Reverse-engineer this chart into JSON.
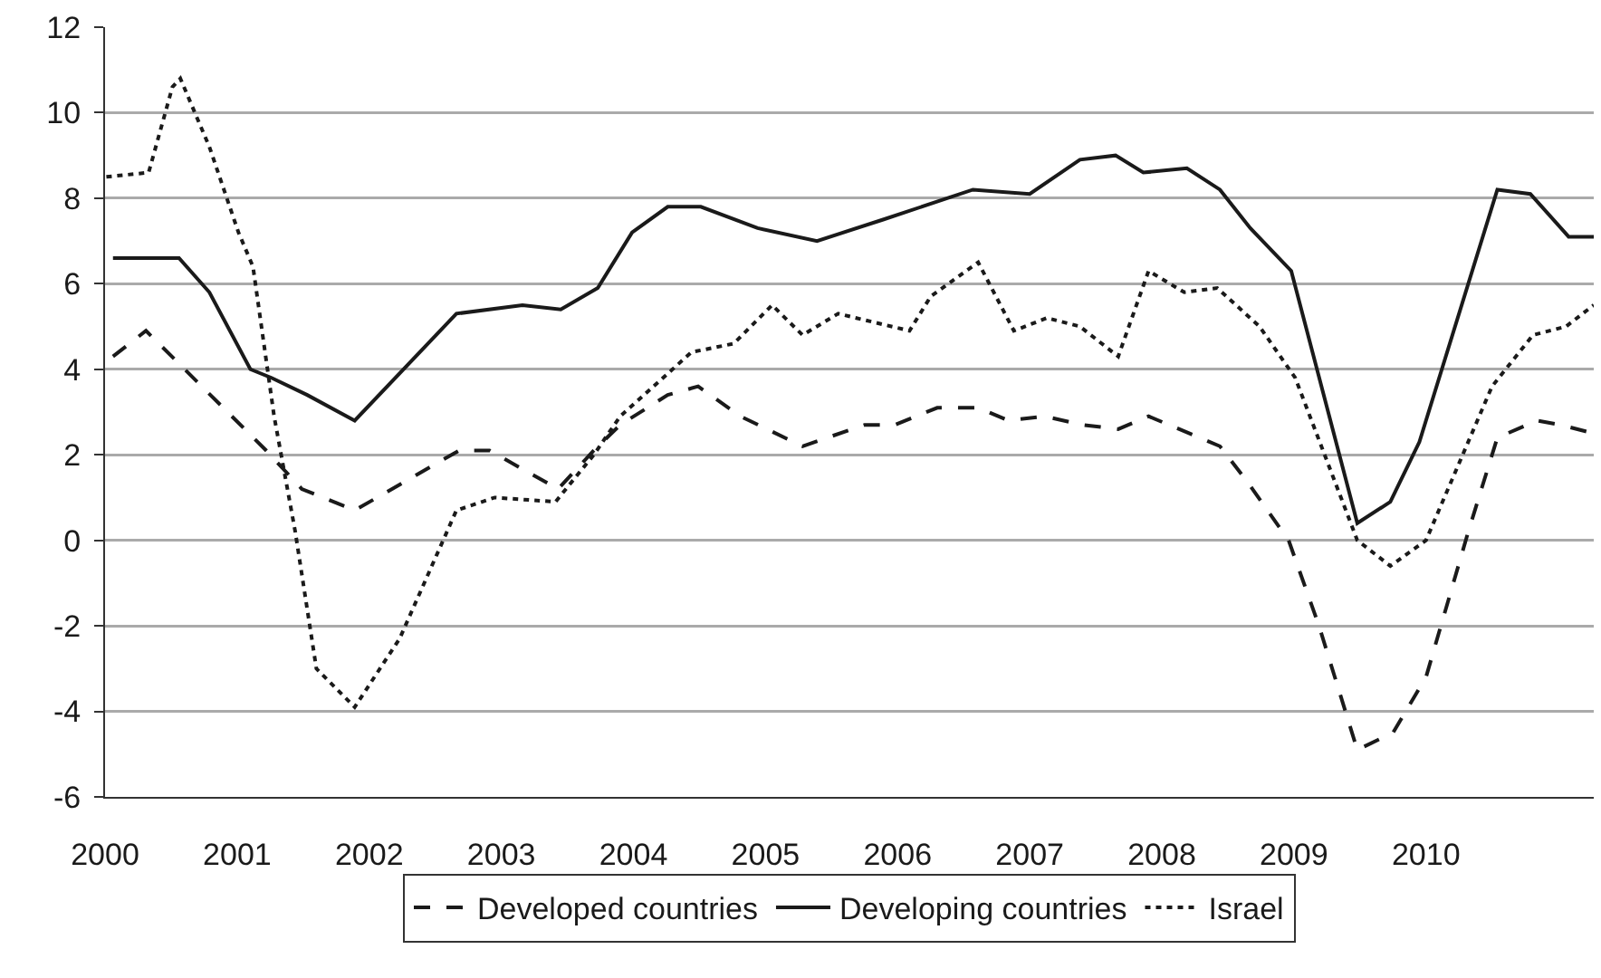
{
  "chart_data": {
    "type": "line",
    "xlim": [
      2000,
      2011.27
    ],
    "xticks": [
      2000,
      2001,
      2002,
      2003,
      2004,
      2005,
      2006,
      2007,
      2008,
      2009,
      2010
    ],
    "ylim": [
      -6,
      12
    ],
    "yticks": [
      -6,
      -4,
      -2,
      0,
      2,
      4,
      6,
      8,
      10,
      12
    ],
    "grid": "y",
    "legend": "bottom",
    "marker": "none",
    "series": [
      {
        "name": "Developed countries",
        "color": "#1a1a1a",
        "line_style": "dashed",
        "x": [
          2000.06,
          2000.31,
          2001.22,
          2001.49,
          2001.89,
          2002.68,
          2002.91,
          2003.43,
          2003.7,
          2003.9,
          2004.26,
          2004.49,
          2004.81,
          2005.28,
          2005.75,
          2005.98,
          2006.3,
          2006.61,
          2006.84,
          2007.11,
          2007.4,
          2007.67,
          2007.9,
          2008.44,
          2008.64,
          2008.96,
          2009.19,
          2009.48,
          2009.75,
          2010.0,
          2010.32,
          2010.54,
          2010.84,
          2011.02,
          2011.27
        ],
        "values": [
          4.3,
          4.9,
          2.1,
          1.2,
          0.7,
          2.1,
          2.1,
          1.2,
          2.1,
          2.7,
          3.4,
          3.6,
          2.9,
          2.2,
          2.7,
          2.7,
          3.1,
          3.1,
          2.8,
          2.9,
          2.7,
          2.6,
          2.9,
          2.2,
          1.4,
          0.0,
          -2.0,
          -4.9,
          -4.5,
          -3.2,
          0.2,
          2.4,
          2.8,
          2.7,
          2.5
        ]
      },
      {
        "name": "Developing countries",
        "color": "#1a1a1a",
        "line_style": "solid",
        "x": [
          2000.06,
          2000.56,
          2000.79,
          2001.1,
          2001.26,
          2001.53,
          2001.89,
          2002.66,
          2003.16,
          2003.45,
          2003.73,
          2003.99,
          2004.26,
          2004.51,
          2004.94,
          2005.39,
          2005.89,
          2006.57,
          2007.0,
          2007.38,
          2007.65,
          2007.86,
          2008.19,
          2008.44,
          2008.67,
          2008.98,
          2009.48,
          2009.73,
          2009.95,
          2010.54,
          2010.79,
          2011.08,
          2011.27
        ],
        "values": [
          6.6,
          6.6,
          5.8,
          4.0,
          3.8,
          3.4,
          2.8,
          5.3,
          5.5,
          5.4,
          5.9,
          7.2,
          7.8,
          7.8,
          7.3,
          7.0,
          7.5,
          8.2,
          8.1,
          8.9,
          9.0,
          8.6,
          8.7,
          8.2,
          7.3,
          6.3,
          0.4,
          0.9,
          2.3,
          8.2,
          8.1,
          7.1,
          7.1
        ]
      },
      {
        "name": "Israel",
        "color": "#1a1a1a",
        "line_style": "dotted",
        "x": [
          2000.01,
          2000.33,
          2000.51,
          2000.57,
          2000.79,
          2001.01,
          2001.12,
          2001.28,
          2001.44,
          2001.6,
          2001.89,
          2002.23,
          2002.66,
          2002.95,
          2003.41,
          2003.7,
          2003.9,
          2004.08,
          2004.44,
          2004.76,
          2005.05,
          2005.28,
          2005.55,
          2006.09,
          2006.25,
          2006.61,
          2006.88,
          2007.13,
          2007.38,
          2007.67,
          2007.9,
          2008.17,
          2008.42,
          2008.74,
          2009.01,
          2009.48,
          2009.73,
          2010.0,
          2010.5,
          2010.81,
          2011.06,
          2011.27
        ],
        "values": [
          8.5,
          8.6,
          10.6,
          10.8,
          9.2,
          7.2,
          6.4,
          2.9,
          0.2,
          -3.0,
          -3.9,
          -2.3,
          0.7,
          1.0,
          0.9,
          2.0,
          2.9,
          3.4,
          4.4,
          4.6,
          5.5,
          4.8,
          5.3,
          4.9,
          5.7,
          6.5,
          4.9,
          5.2,
          5.0,
          4.3,
          6.3,
          5.8,
          5.9,
          5.0,
          3.8,
          0.0,
          -0.6,
          0.0,
          3.6,
          4.8,
          5.0,
          5.5
        ]
      }
    ]
  }
}
